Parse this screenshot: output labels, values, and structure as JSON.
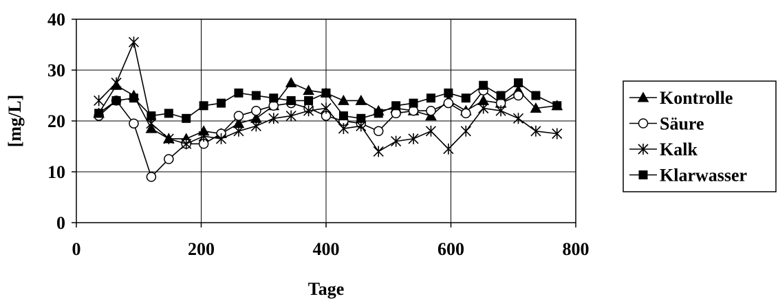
{
  "chart_data": {
    "type": "line",
    "xlabel": "Tage",
    "ylabel": "[mg/L]",
    "xlim": [
      0,
      800
    ],
    "ylim": [
      0,
      40
    ],
    "xticks": [
      0,
      200,
      400,
      600,
      800
    ],
    "yticks": [
      0,
      10,
      20,
      30,
      40
    ],
    "grid": true,
    "legend_position": "right",
    "series": [
      {
        "name": "Kontrolle",
        "marker": "triangle",
        "x": [
          36,
          64,
          92,
          120,
          148,
          176,
          204,
          232,
          260,
          288,
          316,
          344,
          372,
          400,
          428,
          456,
          484,
          512,
          540,
          568,
          596,
          624,
          652,
          680,
          708,
          736,
          770
        ],
        "y": [
          21.5,
          27,
          25,
          18.5,
          16.5,
          16.5,
          18,
          17.5,
          19.5,
          20.5,
          23,
          27.5,
          26,
          25.5,
          24,
          24,
          22,
          22.5,
          22,
          21,
          24,
          22,
          24,
          23.5,
          26,
          22.5,
          23
        ]
      },
      {
        "name": "Säure",
        "marker": "circle",
        "x": [
          36,
          64,
          92,
          120,
          148,
          176,
          204,
          232,
          260,
          288,
          316,
          344,
          372,
          400,
          428,
          456,
          484,
          512,
          540,
          568,
          596,
          624,
          652,
          680,
          708
        ],
        "y": [
          21,
          24,
          19.5,
          9,
          12.5,
          15.5,
          15.5,
          17.5,
          21,
          22,
          23,
          23.5,
          22.5,
          21,
          20,
          19.5,
          18,
          21.5,
          22,
          22,
          23.5,
          21.5,
          26,
          23.5,
          25
        ]
      },
      {
        "name": "Kalk",
        "marker": "star",
        "x": [
          36,
          64,
          92,
          120,
          148,
          176,
          204,
          232,
          260,
          288,
          316,
          344,
          372,
          400,
          428,
          456,
          484,
          512,
          540,
          568,
          596,
          624,
          652,
          680,
          708,
          736,
          770
        ],
        "y": [
          24,
          27.5,
          35.5,
          19.5,
          16.5,
          15.5,
          17,
          16.5,
          18,
          19,
          20.5,
          21,
          22,
          22.5,
          18.5,
          19,
          14,
          16,
          16.5,
          18,
          14.5,
          18,
          22.5,
          22,
          20.5,
          18,
          17.5
        ]
      },
      {
        "name": "Klarwasser",
        "marker": "square",
        "x": [
          36,
          64,
          92,
          120,
          148,
          176,
          204,
          232,
          260,
          288,
          316,
          344,
          372,
          400,
          428,
          456,
          484,
          512,
          540,
          568,
          596,
          624,
          652,
          680,
          708,
          736,
          770
        ],
        "y": [
          21.5,
          24,
          24.5,
          21,
          21.5,
          20.5,
          23,
          23.5,
          25.5,
          25,
          24.5,
          24,
          24,
          25.5,
          21,
          20.5,
          21.5,
          23,
          23.5,
          24.5,
          25.5,
          24.5,
          27,
          25,
          27.5,
          25,
          23
        ]
      }
    ]
  }
}
